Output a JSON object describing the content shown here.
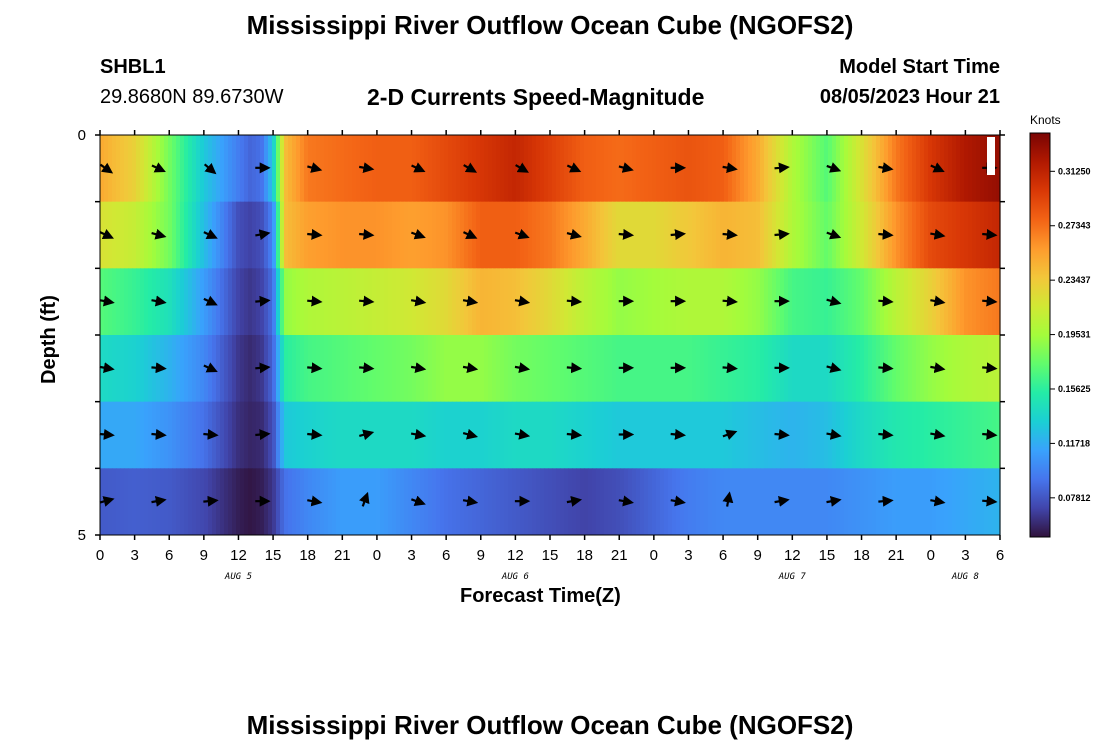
{
  "header": {
    "title": "Mississippi River Outflow Ocean Cube (NGOFS2)",
    "station_id": "SHBL1",
    "coordinates": "29.8680N  89.6730W",
    "plot_title": "2-D Currents Speed-Magnitude",
    "model_start_label": "Model Start Time",
    "model_start_value": "08/05/2023 Hour 21"
  },
  "footer": {
    "title": "Mississippi River Outflow Ocean Cube (NGOFS2)"
  },
  "chart_data": {
    "type": "heatmap",
    "title": "2-D Currents Speed-Magnitude",
    "xlabel": "Forecast Time(Z)",
    "ylabel": "Depth (ft)",
    "colorbar_label": "Knots",
    "colorbar_ticks": [
      "0.07812",
      "0.11718",
      "0.15625",
      "0.19531",
      "0.23437",
      "0.27343",
      "0.31250"
    ],
    "colorbar_range": [
      0.05,
      0.34
    ],
    "y_tick_labels": [
      "0",
      "5"
    ],
    "ylim": [
      0,
      5
    ],
    "x_tick_labels": [
      "0",
      "3",
      "6",
      "9",
      "12",
      "15",
      "18",
      "21",
      "0",
      "3",
      "6",
      "9",
      "12",
      "15",
      "18",
      "21",
      "0",
      "3",
      "6",
      "9",
      "12",
      "15",
      "18",
      "21",
      "0",
      "3",
      "6"
    ],
    "x_day_labels": [
      {
        "label": "AUG 5",
        "hour": 12
      },
      {
        "label": "AUG 6",
        "hour": 36
      },
      {
        "label": "AUG 7",
        "hour": 60
      },
      {
        "label": "AUG 8",
        "hour": 75
      }
    ],
    "xlim": [
      0,
      78
    ],
    "depth_layers": [
      "layer 1 (surface)",
      "layer 2",
      "layer 3",
      "layer 4",
      "layer 5",
      "layer 6 (bottom)"
    ],
    "time_hours": [
      0,
      3,
      6,
      9,
      12,
      13,
      14,
      15,
      16,
      18,
      21,
      24,
      27,
      30,
      33,
      36,
      39,
      42,
      45,
      48,
      51,
      54,
      57,
      60,
      63,
      66,
      69,
      72,
      75,
      78
    ],
    "speed_knots": [
      [
        0.25,
        0.23,
        0.18,
        0.13,
        0.095,
        0.085,
        0.09,
        0.13,
        0.24,
        0.27,
        0.275,
        0.28,
        0.28,
        0.29,
        0.3,
        0.31,
        0.295,
        0.28,
        0.275,
        0.28,
        0.285,
        0.28,
        0.25,
        0.2,
        0.17,
        0.22,
        0.27,
        0.3,
        0.32,
        0.33
      ],
      [
        0.22,
        0.21,
        0.18,
        0.125,
        0.075,
        0.07,
        0.075,
        0.1,
        0.24,
        0.255,
        0.26,
        0.26,
        0.255,
        0.26,
        0.28,
        0.28,
        0.27,
        0.25,
        0.225,
        0.225,
        0.235,
        0.245,
        0.24,
        0.2,
        0.175,
        0.215,
        0.26,
        0.29,
        0.3,
        0.31
      ],
      [
        0.17,
        0.16,
        0.145,
        0.11,
        0.07,
        0.065,
        0.07,
        0.09,
        0.19,
        0.2,
        0.205,
        0.21,
        0.215,
        0.225,
        0.245,
        0.24,
        0.225,
        0.205,
        0.19,
        0.195,
        0.2,
        0.2,
        0.19,
        0.165,
        0.16,
        0.175,
        0.205,
        0.23,
        0.26,
        0.27
      ],
      [
        0.14,
        0.135,
        0.12,
        0.1,
        0.065,
        0.06,
        0.065,
        0.085,
        0.155,
        0.165,
        0.17,
        0.175,
        0.18,
        0.19,
        0.19,
        0.18,
        0.175,
        0.17,
        0.165,
        0.165,
        0.165,
        0.16,
        0.155,
        0.14,
        0.14,
        0.155,
        0.175,
        0.19,
        0.2,
        0.205
      ],
      [
        0.115,
        0.115,
        0.105,
        0.09,
        0.062,
        0.058,
        0.06,
        0.075,
        0.13,
        0.135,
        0.14,
        0.14,
        0.14,
        0.135,
        0.135,
        0.14,
        0.14,
        0.135,
        0.13,
        0.13,
        0.13,
        0.13,
        0.125,
        0.12,
        0.125,
        0.14,
        0.15,
        0.155,
        0.16,
        0.165
      ],
      [
        0.08,
        0.082,
        0.08,
        0.072,
        0.055,
        0.052,
        0.055,
        0.065,
        0.09,
        0.1,
        0.11,
        0.11,
        0.1,
        0.09,
        0.085,
        0.08,
        0.075,
        0.07,
        0.075,
        0.085,
        0.095,
        0.1,
        0.1,
        0.1,
        0.1,
        0.105,
        0.11,
        0.11,
        0.115,
        0.12
      ]
    ],
    "arrow_hours": [
      0,
      4.5,
      9,
      13.5,
      18,
      22.5,
      27,
      31.5,
      36,
      40.5,
      45,
      49.5,
      54,
      58.5,
      63,
      67.5,
      72,
      76.5
    ],
    "arrow_angles_deg": [
      [
        35,
        25,
        40,
        0,
        15,
        10,
        25,
        30,
        30,
        25,
        15,
        0,
        10,
        -5,
        20,
        10,
        25,
        0
      ],
      [
        25,
        15,
        25,
        -10,
        5,
        5,
        20,
        25,
        20,
        15,
        5,
        -5,
        5,
        -5,
        20,
        5,
        10,
        5
      ],
      [
        10,
        10,
        25,
        -5,
        5,
        5,
        10,
        10,
        10,
        5,
        0,
        0,
        5,
        0,
        15,
        5,
        10,
        5
      ],
      [
        10,
        5,
        25,
        -5,
        5,
        5,
        10,
        10,
        10,
        5,
        0,
        0,
        5,
        0,
        15,
        5,
        10,
        5
      ],
      [
        5,
        5,
        5,
        -5,
        5,
        -15,
        10,
        15,
        10,
        5,
        0,
        5,
        -20,
        5,
        10,
        5,
        10,
        5
      ],
      [
        -15,
        -10,
        -5,
        0,
        10,
        -70,
        20,
        10,
        0,
        -10,
        10,
        10,
        -80,
        -10,
        -10,
        -5,
        10,
        5
      ]
    ]
  },
  "colors": {
    "colormap": [
      "#30123b",
      "#4145ab",
      "#4675ed",
      "#39a2fc",
      "#1bcfd4",
      "#24eca6",
      "#61fc6c",
      "#a4fc3b",
      "#d1e834",
      "#f3c63a",
      "#fe9b2d",
      "#f36315",
      "#d93806",
      "#b11901",
      "#7a0403"
    ]
  }
}
